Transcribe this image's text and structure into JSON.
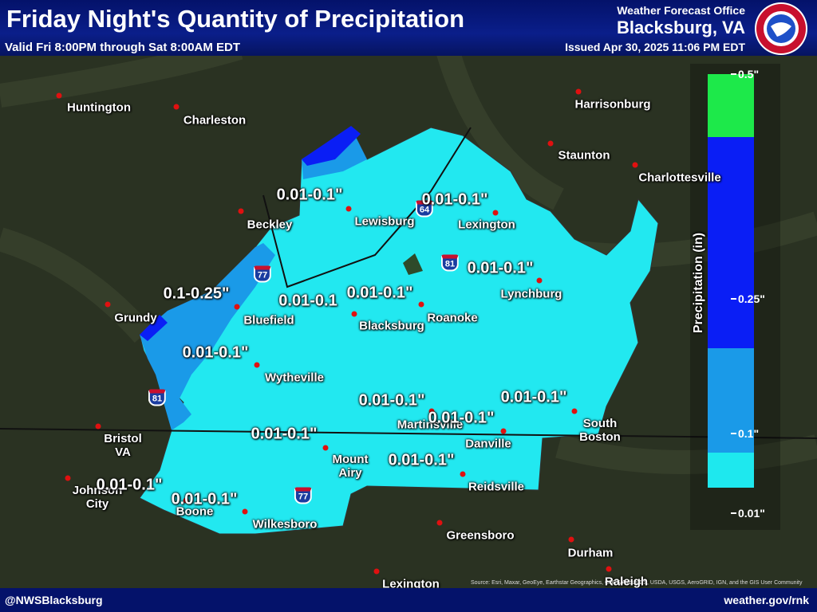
{
  "header": {
    "title": "Friday Night's Quantity of Precipitation",
    "subtitle": "Valid Fri 8:00PM through Sat 8:00AM EDT",
    "office": "Weather Forecast Office",
    "location": "Blacksburg, VA",
    "issued": "Issued Apr 30, 2025 11:06 PM EDT"
  },
  "cities": [
    "Huntington",
    "Charleston",
    "Beckley",
    "Lewisburg",
    "Lexington",
    "Harrisonburg",
    "Staunton",
    "Charlottesville",
    "Grundy",
    "Bluefield",
    "Blacksburg",
    "Roanoke",
    "Lynchburg",
    "Wytheville",
    "Martinsville",
    "Danville",
    "South Boston",
    "Bristol VA",
    "Mount Airy",
    "Reidsville",
    "Johnson City",
    "Boone",
    "Wilkesboro",
    "Greensboro",
    "Durham",
    "Raleigh",
    "Lexington"
  ],
  "amounts": [
    "0.01-0.1\"",
    "0.01-0.1\"",
    "0.01-0.1\"",
    "0.1-0.25\"",
    "0.01-0.1",
    "0.01-0.1\"",
    "0.01-0.1\"",
    "0.01-0.1\"",
    "0.01-0.1\"",
    "0.01-0.1\"",
    "0.01-0.1\"",
    "0.01-0.1\"",
    "0.01-0.1\"",
    "0.01-0.1\""
  ],
  "interstates": [
    "64",
    "81",
    "77",
    "81",
    "77"
  ],
  "legend": {
    "title": "Precipitation (in)",
    "bands": [
      {
        "color": "#1de94a"
      },
      {
        "color": "#0a1ef5"
      },
      {
        "color": "#1a9ae8"
      },
      {
        "color": "#1ee8ee"
      }
    ],
    "ticks": [
      "0.5\"",
      "0.25\"",
      "0.1\"",
      "0.01\""
    ]
  },
  "footer": {
    "left": "@NWSBlacksburg",
    "right": "weather.gov/rnk",
    "source": "Source: Esri, Maxar, GeoEye, Earthstar Geographics, CNES/Airbus DS, USDA, USGS, AeroGRID, IGN, and the GIS User Community"
  }
}
